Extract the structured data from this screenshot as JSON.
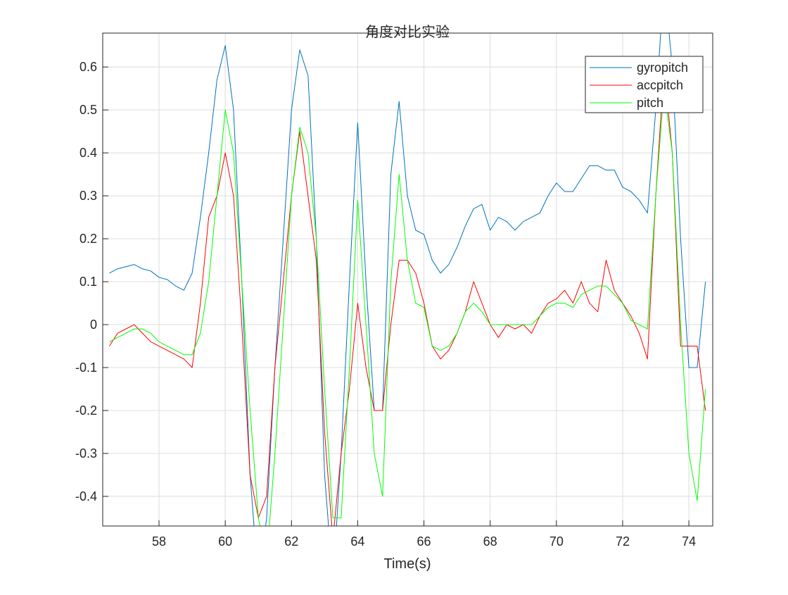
{
  "chart_data": {
    "type": "line",
    "title": "角度对比实验",
    "xlabel": "Time(s)",
    "x": [
      56.5,
      56.75,
      57,
      57.25,
      57.5,
      57.75,
      58,
      58.25,
      58.5,
      58.75,
      59,
      59.25,
      59.5,
      59.75,
      60,
      60.25,
      60.5,
      60.75,
      61,
      61.25,
      61.5,
      61.75,
      62,
      62.25,
      62.5,
      62.75,
      63,
      63.25,
      63.5,
      63.75,
      64,
      64.25,
      64.5,
      64.75,
      65,
      65.25,
      65.5,
      65.75,
      66,
      66.25,
      66.5,
      66.75,
      67,
      67.25,
      67.5,
      67.75,
      68,
      68.25,
      68.5,
      68.75,
      69,
      69.25,
      69.5,
      69.75,
      70,
      70.25,
      70.5,
      70.75,
      71,
      71.25,
      71.5,
      71.75,
      72,
      72.25,
      72.5,
      72.75,
      73,
      73.25,
      73.5,
      73.75,
      74,
      74.25,
      74.5
    ],
    "series": [
      {
        "name": "gyropitch",
        "color": "#0072bd",
        "values": [
          0.12,
          0.13,
          0.135,
          0.14,
          0.13,
          0.125,
          0.11,
          0.105,
          0.09,
          0.08,
          0.12,
          0.25,
          0.4,
          0.57,
          0.65,
          0.5,
          0.1,
          -0.35,
          -0.6,
          -0.45,
          -0.1,
          0.2,
          0.5,
          0.64,
          0.58,
          0.2,
          -0.35,
          -0.6,
          -0.3,
          0.1,
          0.47,
          0.1,
          -0.2,
          -0.2,
          0.35,
          0.52,
          0.3,
          0.22,
          0.21,
          0.15,
          0.12,
          0.14,
          0.18,
          0.23,
          0.27,
          0.28,
          0.22,
          0.25,
          0.24,
          0.22,
          0.24,
          0.25,
          0.26,
          0.3,
          0.33,
          0.31,
          0.31,
          0.34,
          0.37,
          0.37,
          0.36,
          0.36,
          0.32,
          0.31,
          0.29,
          0.26,
          0.5,
          0.8,
          0.6,
          0.2,
          -0.1,
          -0.1,
          0.1
        ]
      },
      {
        "name": "accpitch",
        "color": "#ff0000",
        "values": [
          -0.05,
          -0.02,
          -0.01,
          0.0,
          -0.02,
          -0.04,
          -0.05,
          -0.06,
          -0.07,
          -0.08,
          -0.1,
          0.05,
          0.25,
          0.3,
          0.4,
          0.3,
          0.0,
          -0.35,
          -0.45,
          -0.4,
          -0.1,
          0.1,
          0.3,
          0.45,
          0.3,
          0.15,
          -0.25,
          -0.5,
          -0.3,
          -0.15,
          0.05,
          -0.1,
          -0.2,
          -0.2,
          0.0,
          0.15,
          0.15,
          0.12,
          0.05,
          -0.05,
          -0.08,
          -0.06,
          -0.02,
          0.03,
          0.1,
          0.05,
          0.0,
          -0.03,
          0.0,
          -0.01,
          0.0,
          -0.02,
          0.02,
          0.05,
          0.06,
          0.08,
          0.05,
          0.1,
          0.05,
          0.03,
          0.15,
          0.08,
          0.05,
          0.02,
          -0.02,
          -0.08,
          0.3,
          0.6,
          0.4,
          -0.05,
          -0.05,
          -0.05,
          -0.2
        ]
      },
      {
        "name": "pitch",
        "color": "#00ff00",
        "values": [
          -0.04,
          -0.03,
          -0.02,
          -0.01,
          -0.01,
          -0.02,
          -0.04,
          -0.05,
          -0.06,
          -0.07,
          -0.07,
          -0.02,
          0.1,
          0.3,
          0.5,
          0.4,
          0.1,
          -0.2,
          -0.45,
          -0.55,
          -0.3,
          0.0,
          0.3,
          0.46,
          0.4,
          0.2,
          -0.15,
          -0.45,
          -0.45,
          -0.1,
          0.29,
          0.0,
          -0.3,
          -0.4,
          0.1,
          0.35,
          0.15,
          0.05,
          0.04,
          -0.05,
          -0.06,
          -0.05,
          -0.02,
          0.03,
          0.05,
          0.03,
          0.0,
          0.0,
          0.0,
          0.0,
          0.0,
          0.0,
          0.02,
          0.04,
          0.05,
          0.05,
          0.04,
          0.07,
          0.08,
          0.09,
          0.09,
          0.07,
          0.05,
          0.01,
          0.0,
          -0.01,
          0.3,
          0.55,
          0.4,
          0.0,
          -0.3,
          -0.41,
          -0.15
        ]
      }
    ],
    "xlim": [
      56.3,
      74.72
    ],
    "ylim": [
      -0.469,
      0.679
    ],
    "xticks": [
      58,
      60,
      62,
      64,
      66,
      68,
      70,
      72,
      74
    ],
    "yticks": [
      -0.4,
      -0.3,
      -0.2,
      -0.1,
      0,
      0.1,
      0.2,
      0.3,
      0.4,
      0.5,
      0.6
    ],
    "grid": true,
    "legend": "northeast"
  }
}
